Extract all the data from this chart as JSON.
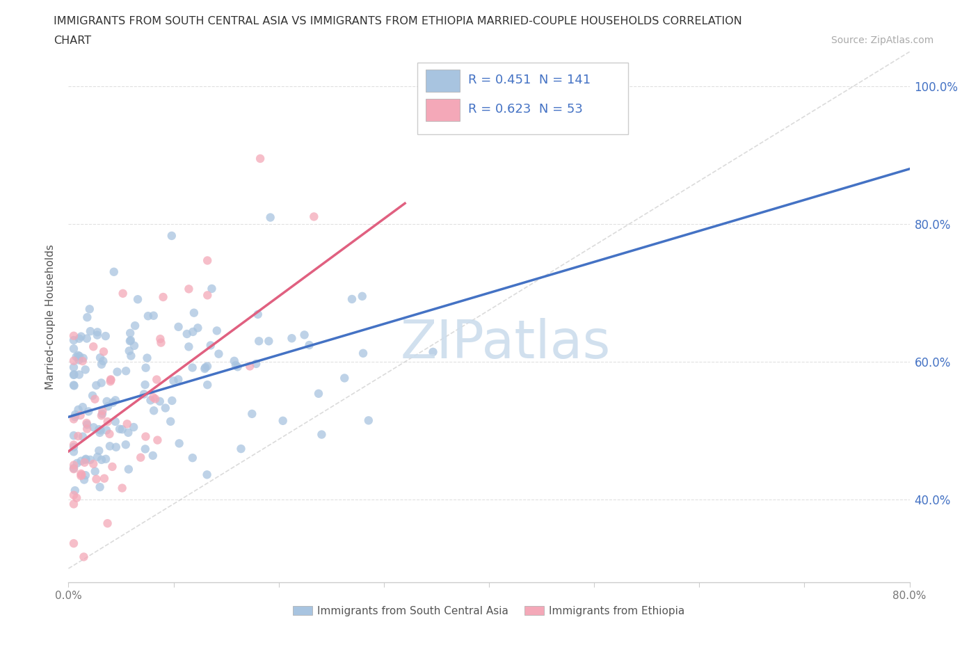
{
  "title_line1": "IMMIGRANTS FROM SOUTH CENTRAL ASIA VS IMMIGRANTS FROM ETHIOPIA MARRIED-COUPLE HOUSEHOLDS CORRELATION",
  "title_line2": "CHART",
  "source_text": "Source: ZipAtlas.com",
  "ylabel": "Married-couple Households",
  "legend_label1": "Immigrants from South Central Asia",
  "legend_label2": "Immigrants from Ethiopia",
  "R1": "0.451",
  "N1": "141",
  "R2": "0.623",
  "N2": "53",
  "color1": "#a8c4e0",
  "color2": "#f4a8b8",
  "line_color1": "#4472c4",
  "line_color2": "#e06080",
  "diagonal_color": "#cccccc",
  "watermark": "ZIPatlas",
  "watermark_color": "#ccdded",
  "xlim": [
    0.0,
    0.8
  ],
  "ylim": [
    0.28,
    1.05
  ],
  "xtick_positions": [
    0.0,
    0.1,
    0.2,
    0.3,
    0.4,
    0.5,
    0.6,
    0.7,
    0.8
  ],
  "xticklabels": [
    "0.0%",
    "",
    "",
    "",
    "",
    "",
    "",
    "",
    "80.0%"
  ],
  "ytick_positions": [
    0.4,
    0.6,
    0.8,
    1.0
  ],
  "yticklabels": [
    "40.0%",
    "60.0%",
    "80.0%",
    "100.0%"
  ]
}
